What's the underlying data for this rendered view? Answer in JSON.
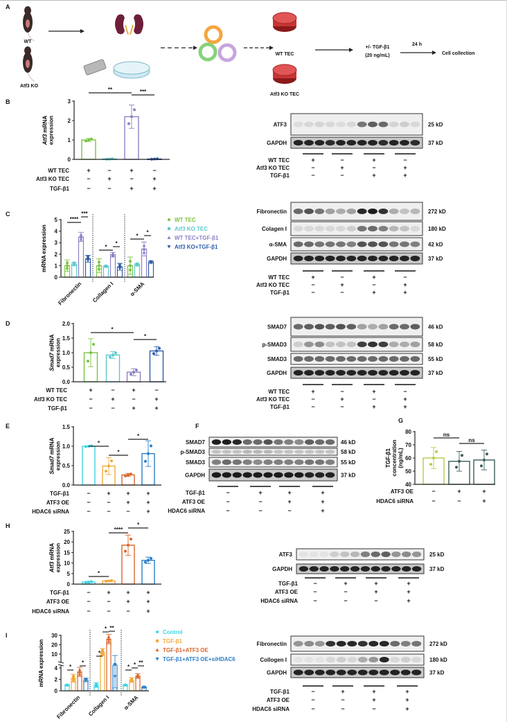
{
  "panel_labels": {
    "A": "A",
    "B": "B",
    "C": "C",
    "D": "D",
    "E": "E",
    "F": "F",
    "G": "G",
    "H": "H",
    "I": "I"
  },
  "schematic": {
    "mouse_wt": "WT",
    "mouse_ko": "Atf3 KO",
    "wt_tec": "WT TEC",
    "ko_tec": "Atf3 KO TEC",
    "treatment": "+/- TGF-β1",
    "dose": "(20 ng/mL)",
    "time": "24 h",
    "endpoint": "Cell collection"
  },
  "chart_data": [
    {
      "panel": "B",
      "type": "bar",
      "ylabel": {
        "gene": "Atf3",
        "text": " mRNA",
        "line2": "expression"
      },
      "ylim": [
        0,
        3
      ],
      "yticks": [
        "0",
        "1",
        "2",
        "3"
      ],
      "grid": false,
      "values": [
        1.0,
        0.02,
        2.2,
        0.02
      ],
      "errors": [
        0.08,
        0.02,
        0.6,
        0.02
      ],
      "colors": [
        "#7cc242",
        "#5cc9cf",
        "#8d80c4",
        "#2f5da8"
      ],
      "significance": [
        {
          "between": [
            0,
            2
          ],
          "label": "**"
        },
        {
          "between": [
            2,
            3
          ],
          "label": "***"
        }
      ],
      "conditions": {
        "rows": [
          {
            "label": "WT TEC",
            "values": [
              "+",
              "−",
              "+",
              "−"
            ]
          },
          {
            "label": "Atf3 KO TEC",
            "values": [
              "−",
              "+",
              "−",
              "+"
            ]
          },
          {
            "label": "TGF-β1",
            "values": [
              "−",
              "−",
              "+",
              "+"
            ]
          }
        ]
      }
    },
    {
      "panel": "C",
      "type": "bar",
      "ylabel": {
        "gene": "",
        "text": "mRNA expression",
        "line2": ""
      },
      "ylim": [
        0,
        5
      ],
      "yticks": [
        "0",
        "1",
        "2",
        "3",
        "4",
        "5"
      ],
      "grid": false,
      "legend_position": "right",
      "categories": [
        "Fibronectin",
        "Collagen I",
        "α-SMA"
      ],
      "series": [
        {
          "name": "WT TEC",
          "marker": "circle",
          "color": "#7cc242",
          "values": [
            1.0,
            1.0,
            1.0
          ],
          "errors": [
            0.5,
            0.6,
            0.75
          ]
        },
        {
          "name": "Atf3 KO TEC",
          "marker": "square",
          "color": "#5cc9cf",
          "values": [
            1.15,
            0.95,
            1.1
          ],
          "errors": [
            0.15,
            0.05,
            0.1
          ]
        },
        {
          "name": "WT TEC+TGF-β1",
          "marker": "triangle-up",
          "color": "#8d80c4",
          "values": [
            3.5,
            1.95,
            2.45
          ],
          "errors": [
            0.4,
            0.2,
            0.6
          ]
        },
        {
          "name": "Atf3 KO+TGF-β1",
          "marker": "triangle-down",
          "color": "#2f5da8",
          "values": [
            1.6,
            0.9,
            1.3
          ],
          "errors": [
            0.3,
            0.3,
            0.1
          ]
        }
      ],
      "significance": [
        {
          "category": 0,
          "between": [
            0,
            2
          ],
          "label": "****"
        },
        {
          "category": 0,
          "between": [
            2,
            3
          ],
          "label": "***"
        },
        {
          "category": 1,
          "between": [
            0,
            2
          ],
          "label": "*"
        },
        {
          "category": 1,
          "between": [
            2,
            3
          ],
          "label": "*"
        },
        {
          "category": 2,
          "between": [
            0,
            2
          ],
          "label": "*"
        },
        {
          "category": 2,
          "between": [
            2,
            3
          ],
          "label": "*"
        }
      ]
    },
    {
      "panel": "D",
      "type": "bar",
      "ylabel": {
        "gene": "Smad7",
        "text": " mRNA",
        "line2": "expression"
      },
      "ylim": [
        0,
        2
      ],
      "yticks": [
        "0.0",
        "0.5",
        "1.0",
        "1.5",
        "2.0"
      ],
      "grid": false,
      "values": [
        1.0,
        0.92,
        0.33,
        1.06
      ],
      "errors": [
        0.48,
        0.12,
        0.12,
        0.15
      ],
      "colors": [
        "#7cc242",
        "#5cc9cf",
        "#8d80c4",
        "#2f5da8"
      ],
      "significance": [
        {
          "between": [
            0,
            2
          ],
          "label": "*"
        },
        {
          "between": [
            2,
            3
          ],
          "label": "*"
        }
      ],
      "conditions": {
        "rows": [
          {
            "label": "WT TEC",
            "values": [
              "+",
              "−",
              "+",
              "−"
            ]
          },
          {
            "label": "Atf3 KO TEC",
            "values": [
              "−",
              "+",
              "−",
              "+"
            ]
          },
          {
            "label": "TGF-β1",
            "values": [
              "−",
              "−",
              "+",
              "+"
            ]
          }
        ]
      }
    },
    {
      "panel": "E",
      "type": "bar",
      "ylabel": {
        "gene": "Smad7",
        "text": " mRNA",
        "line2": "expression"
      },
      "ylim": [
        0,
        1.5
      ],
      "yticks": [
        "0.0",
        "0.5",
        "1.0",
        "1.5"
      ],
      "grid": false,
      "values": [
        1.0,
        0.49,
        0.26,
        0.81
      ],
      "errors": [
        0.02,
        0.22,
        0.04,
        0.33
      ],
      "colors": [
        "#3fd3e3",
        "#f3a93a",
        "#d8662a",
        "#2b7fc6"
      ],
      "significance": [
        {
          "between": [
            0,
            1
          ],
          "label": "*"
        },
        {
          "between": [
            1,
            2
          ],
          "label": "*"
        },
        {
          "between": [
            2,
            3
          ],
          "label": "*"
        }
      ],
      "conditions": {
        "rows": [
          {
            "label": "TGF-β1",
            "values": [
              "−",
              "+",
              "+",
              "+"
            ]
          },
          {
            "label": "ATF3 OE",
            "values": [
              "−",
              "−",
              "+",
              "+"
            ]
          },
          {
            "label": "HDAC6 siRNA",
            "values": [
              "−",
              "−",
              "−",
              "+"
            ]
          }
        ]
      }
    },
    {
      "panel": "G",
      "type": "bar",
      "ylabel": {
        "gene": "",
        "text": "TGF-β1",
        "line2": "concentration",
        "line3": "(ng/mL)"
      },
      "ylim": [
        40,
        80
      ],
      "yticks": [
        "40",
        "50",
        "60",
        "70",
        "80"
      ],
      "grid": false,
      "values": [
        60,
        57.5,
        58.5
      ],
      "errors": [
        8,
        7.5,
        7.5
      ],
      "colors": [
        "#b9c94b",
        "#3d5b5b",
        "#3d5b5b"
      ],
      "significance": [
        {
          "between": [
            0,
            1
          ],
          "label": "ns"
        },
        {
          "between": [
            1,
            2
          ],
          "label": "ns"
        }
      ],
      "conditions": {
        "rows": [
          {
            "label": "ATF3 OE",
            "values": [
              "−",
              "+",
              "+"
            ]
          },
          {
            "label": "HDAC6 siRNA",
            "values": [
              "−",
              "−",
              "+"
            ]
          }
        ]
      }
    },
    {
      "panel": "H",
      "type": "bar",
      "ylabel": {
        "gene": "Atf3",
        "text": " mRNA",
        "line2": "expression"
      },
      "ylim": [
        0,
        25
      ],
      "yticks": [
        "0",
        "5",
        "10",
        "15",
        "20",
        "25"
      ],
      "grid": false,
      "values": [
        1.0,
        1.5,
        18.5,
        11.3
      ],
      "errors": [
        0.3,
        0.3,
        4.8,
        1.5
      ],
      "colors": [
        "#3fd3e3",
        "#f3a93a",
        "#d8662a",
        "#2b7fc6"
      ],
      "significance": [
        {
          "between": [
            0,
            1
          ],
          "label": "*"
        },
        {
          "between": [
            1,
            2
          ],
          "label": "****"
        },
        {
          "between": [
            2,
            3
          ],
          "label": "*"
        }
      ],
      "conditions": {
        "rows": [
          {
            "label": "TGF-β1",
            "values": [
              "−",
              "+",
              "+",
              "+"
            ]
          },
          {
            "label": "ATF3 OE",
            "values": [
              "−",
              "−",
              "+",
              "+"
            ]
          },
          {
            "label": "HDAC6 siRNA",
            "values": [
              "−",
              "−",
              "−",
              "+"
            ]
          }
        ]
      }
    },
    {
      "panel": "I",
      "type": "bar",
      "ylabel": {
        "gene": "",
        "text": "mRNA expression",
        "line2": ""
      },
      "ylim": [
        0,
        30
      ],
      "axis_break": [
        4.5,
        8
      ],
      "yticks": [
        "0",
        "2",
        "4",
        "10",
        "20",
        "30"
      ],
      "grid": false,
      "legend_position": "right",
      "categories": [
        "Fibronectin",
        "Collagen I",
        "α-SMA"
      ],
      "series": [
        {
          "name": "Control",
          "marker": "circle",
          "color": "#3fd3e3",
          "values": [
            1.0,
            1.0,
            1.0
          ],
          "errors": [
            0.1,
            0.4,
            0.1
          ]
        },
        {
          "name": "TGF-β1",
          "marker": "square",
          "color": "#f3a93a",
          "values": [
            2.2,
            12,
            1.9
          ],
          "errors": [
            0.7,
            4,
            0.4
          ]
        },
        {
          "name": "TGF-β1+ATF3 OE",
          "marker": "triangle-up",
          "color": "#d8662a",
          "values": [
            3.3,
            26,
            2.6
          ],
          "errors": [
            0.8,
            5,
            0.4
          ]
        },
        {
          "name": "TGF-β1+ATF3 OE+siHDAC6",
          "marker": "triangle-down",
          "color": "#2b7fc6",
          "values": [
            1.9,
            4.5,
            0.6
          ],
          "errors": [
            0.3,
            4,
            0.1
          ]
        }
      ],
      "significance": [
        {
          "category": 0,
          "between": [
            0,
            1
          ],
          "label": "*"
        },
        {
          "category": 0,
          "between": [
            2,
            3
          ],
          "label": "*"
        },
        {
          "category": 1,
          "between": [
            0,
            1
          ],
          "label": "*"
        },
        {
          "category": 1,
          "between": [
            1,
            2
          ],
          "label": "*"
        },
        {
          "category": 1,
          "between": [
            2,
            3
          ],
          "label": "**"
        },
        {
          "category": 2,
          "between": [
            0,
            1
          ],
          "label": "*"
        },
        {
          "category": 2,
          "between": [
            1,
            2
          ],
          "label": "*"
        },
        {
          "category": 2,
          "between": [
            2,
            3
          ],
          "label": "**"
        }
      ]
    }
  ],
  "blots": {
    "B": {
      "rows": [
        {
          "protein": "ATF3",
          "kd": "25 kD"
        },
        {
          "protein": "GAPDH",
          "kd": "37 kD"
        }
      ],
      "conditions": {
        "rows": [
          {
            "label": "WT TEC",
            "values": [
              "+",
              "−",
              "+",
              "−"
            ]
          },
          {
            "label": "Atf3 KO TEC",
            "values": [
              "−",
              "+",
              "−",
              "+"
            ]
          },
          {
            "label": "TGF-β1",
            "values": [
              "−",
              "−",
              "+",
              "+"
            ]
          }
        ]
      }
    },
    "C": {
      "rows": [
        {
          "protein": "Fibronectin",
          "kd": "272 kD"
        },
        {
          "protein": "Colagen I",
          "kd": "180 kD"
        },
        {
          "protein": "α-SMA",
          "kd": "42 kD"
        },
        {
          "protein": "GAPDH",
          "kd": "37 kD"
        }
      ],
      "conditions": {
        "rows": [
          {
            "label": "WT TEC",
            "values": [
              "+",
              "−",
              "+",
              "−"
            ]
          },
          {
            "label": "Atf3 KO TEC",
            "values": [
              "−",
              "+",
              "−",
              "+"
            ]
          },
          {
            "label": "TGF-β1",
            "values": [
              "−",
              "−",
              "+",
              "+"
            ]
          }
        ]
      }
    },
    "D": {
      "rows": [
        {
          "protein": "SMAD7",
          "kd": "46 kD"
        },
        {
          "protein": "p-SMAD3",
          "kd": "58 kD"
        },
        {
          "protein": "SMAD3",
          "kd": "55 kD"
        },
        {
          "protein": "GAPDH",
          "kd": "37 kD"
        }
      ],
      "conditions": {
        "rows": [
          {
            "label": "WT TEC",
            "values": [
              "+",
              "−",
              "+",
              "−"
            ]
          },
          {
            "label": "Atf3 KO TEC",
            "values": [
              "−",
              "+",
              "−",
              "+"
            ]
          },
          {
            "label": "TGF-β1",
            "values": [
              "−",
              "−",
              "+",
              "+"
            ]
          }
        ]
      }
    },
    "F": {
      "rows": [
        {
          "protein": "SMAD7",
          "kd": "46 kD"
        },
        {
          "protein": "p-SMAD3",
          "kd": "58 kD"
        },
        {
          "protein": "SMAD3",
          "kd": "55 kD"
        },
        {
          "protein": "GAPDH",
          "kd": "37 kD"
        }
      ],
      "conditions": {
        "rows": [
          {
            "label": "TGF-β1",
            "values": [
              "−",
              "+",
              "+",
              "+"
            ]
          },
          {
            "label": "ATF3 OE",
            "values": [
              "−",
              "−",
              "+",
              "+"
            ]
          },
          {
            "label": "HDAC6 siRNA",
            "values": [
              "−",
              "−",
              "−",
              "+"
            ]
          }
        ]
      }
    },
    "H": {
      "rows": [
        {
          "protein": "ATF3",
          "kd": "25 kD"
        },
        {
          "protein": "GAPDH",
          "kd": "37 kD"
        }
      ],
      "conditions": {
        "rows": [
          {
            "label": "TGF-β1",
            "values": [
              "−",
              "+",
              "+",
              "+"
            ]
          },
          {
            "label": "ATF3 OE",
            "values": [
              "−",
              "−",
              "+",
              "+"
            ]
          },
          {
            "label": "HDAC6 siRNA",
            "values": [
              "−",
              "−",
              "−",
              "+"
            ]
          }
        ]
      }
    },
    "I": {
      "rows": [
        {
          "protein": "Fibronectin",
          "kd": "272 kD"
        },
        {
          "protein": "Collogen I",
          "kd": "180 kD"
        },
        {
          "protein": "GAPDH",
          "kd": "37 kD"
        }
      ],
      "conditions": {
        "rows": [
          {
            "label": "TGF-β1",
            "values": [
              "−",
              "+",
              "+",
              "+"
            ]
          },
          {
            "label": "ATF3 OE",
            "values": [
              "−",
              "−",
              "+",
              "+"
            ]
          },
          {
            "label": "HDAC6 siRNA",
            "values": [
              "−",
              "−",
              "−",
              "+"
            ]
          }
        ]
      }
    }
  }
}
